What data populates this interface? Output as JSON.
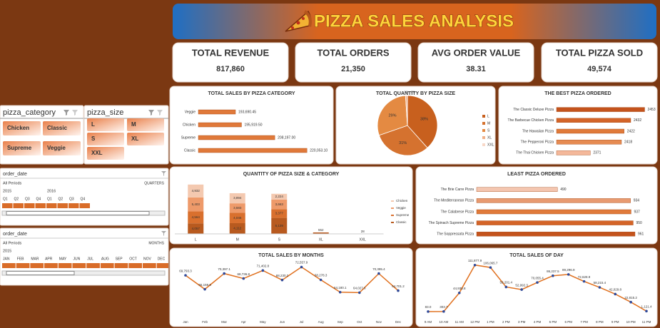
{
  "header": {
    "title": "PIZZA SALES ANALYSIS"
  },
  "kpis": [
    {
      "title": "TOTAL REVENUE",
      "value": "817,860"
    },
    {
      "title": "TOTAL ORDERS",
      "value": "21,350"
    },
    {
      "title": "AVG ORDER VALUE",
      "value": "38.31"
    },
    {
      "title": "TOTAL PIZZA SOLD",
      "value": "49,574"
    }
  ],
  "slicers": [
    {
      "title": "pizza_category",
      "items": [
        "Chicken",
        "Classic",
        "Supreme",
        "Veggie"
      ]
    },
    {
      "title": "pizza_size",
      "items": [
        "L",
        "M",
        "S",
        "XL",
        "XXL"
      ]
    }
  ],
  "timelines": [
    {
      "title": "order_date",
      "filter": "All Periods",
      "level": "QUARTERS",
      "years": [
        "2015",
        "2016"
      ],
      "periods": [
        "Q1",
        "Q2",
        "Q3",
        "Q4",
        "Q1",
        "Q2",
        "Q3",
        "Q4"
      ]
    },
    {
      "title": "order_date",
      "filter": "All Periods",
      "level": "MONTHS",
      "years": [
        "2015"
      ],
      "periods": [
        "JAN",
        "FEB",
        "MAR",
        "APR",
        "MAY",
        "JUN",
        "JUL",
        "AUG",
        "SEP",
        "OCT",
        "NOV",
        "DEC"
      ]
    }
  ],
  "chart_data": [
    {
      "type": "bar",
      "orientation": "horizontal",
      "title": "TOTAL SALES BY PIZZA CATEGORY",
      "categories": [
        "Veggie",
        "Chicken",
        "Supreme",
        "Classic"
      ],
      "values": [
        193690.45,
        195919.5,
        208197,
        220053.1
      ],
      "value_labels": [
        "193,690.45",
        "195,919.50",
        "208,197.00",
        "220,053.10"
      ],
      "xlim": [
        180000,
        225000
      ],
      "color": "#e0793a"
    },
    {
      "type": "pie",
      "title": "TOTAL QUANTITY BY PIZZA SIZE",
      "categories": [
        "L",
        "M",
        "S",
        "XL",
        "XXL"
      ],
      "values": [
        38,
        31,
        29,
        1,
        0
      ],
      "value_labels": [
        "38%",
        "31%",
        "29%",
        "1%",
        "0%"
      ],
      "colors": [
        "#c8601e",
        "#d5722f",
        "#e48a42",
        "#f0b088",
        "#f8d8c8"
      ]
    },
    {
      "type": "bar",
      "orientation": "horizontal",
      "title": "THE BEST PIZZA ORDERED",
      "categories": [
        "The Classic Deluxe Pizza",
        "The Barbecue Chicken Pizza",
        "The Hawaiian Pizza",
        "The Pepperoni Pizza",
        "The Thai Chicken Pizza"
      ],
      "values": [
        2453,
        2432,
        2422,
        2418,
        2371
      ],
      "xlim": [
        2320,
        2460
      ],
      "colors": [
        "#c4531c",
        "#d46428",
        "#e07a3a",
        "#e68b52",
        "#f4b89a"
      ]
    },
    {
      "type": "stacked_bar",
      "title": "QUANTITY OF PIZZA SIZE & CATEGORY",
      "categories": [
        "L",
        "M",
        "S",
        "XL",
        "XXL"
      ],
      "series": [
        {
          "name": "Chicken",
          "color": "#f4c9b0",
          "values": [
            4932,
            3894,
            2224,
            0,
            0
          ],
          "value_labels": [
            "4,932",
            "3,894",
            "2,224",
            null,
            null
          ]
        },
        {
          "name": "Veggie",
          "color": "#ee9a6a",
          "values": [
            5403,
            3583,
            3663,
            0,
            0
          ],
          "value_labels": [
            "5,403",
            "3,583",
            "3,663",
            null,
            null
          ]
        },
        {
          "name": "Supreme",
          "color": "#d9702e",
          "values": [
            4564,
            4046,
            3377,
            0,
            0
          ],
          "value_labels": [
            "4,564",
            "4,046",
            "3,377",
            null,
            null
          ]
        },
        {
          "name": "Classic",
          "color": "#b85a1f",
          "values": [
            4057,
            4112,
            6139,
            552,
            28
          ],
          "value_labels": [
            "4,057",
            "4,112",
            "6,139",
            "552",
            "28"
          ]
        }
      ],
      "ylim": [
        0,
        20000
      ]
    },
    {
      "type": "bar",
      "orientation": "horizontal",
      "title": "LEAST PIZZA ORDERED",
      "categories": [
        "The Brie Carre Pizza",
        "The Mediterranean Pizza",
        "The Calabrese Pizza",
        "The Spinach Supreme Pizza",
        "The Soppressata Pizza"
      ],
      "values": [
        490,
        934,
        937,
        950,
        961
      ],
      "xlim": [
        0,
        1000
      ],
      "colors": [
        "#f4c6b0",
        "#e89a70",
        "#e07a3a",
        "#d46428",
        "#c4531c"
      ]
    },
    {
      "type": "line",
      "title": "TOTAL SALES BY MONTHS",
      "categories": [
        "Jan",
        "Feb",
        "Mar",
        "Apr",
        "May",
        "Jun",
        "Jul",
        "Aug",
        "Sep",
        "Oct",
        "Nov",
        "Dec"
      ],
      "values": [
        69793.3,
        65159.6,
        70397.1,
        68736.8,
        71402.8,
        68230.2,
        72557.9,
        68278.3,
        64180.1,
        64027.6,
        70395.4,
        64701.2
      ],
      "value_labels": [
        "69,793.3",
        "65,159.6",
        "70,397.1",
        "68,736.8",
        "71,402.8",
        "68,230.2",
        "72,557.9",
        "68,278.3",
        "64,180.1",
        "64,027.6",
        "70,395.4",
        "64,701.2"
      ],
      "ylim": [
        57000,
        76000
      ],
      "color": "#e0701e",
      "marker_color": "#2f4a9a"
    },
    {
      "type": "line",
      "title": "TOTAL SALES OF DAY",
      "categories": [
        "9 AM",
        "10 AM",
        "11 AM",
        "12 PM",
        "1 PM",
        "2 PM",
        "3 PM",
        "4 PM",
        "5 PM",
        "6 PM",
        "7 PM",
        "8 PM",
        "9 PM",
        "10 PM",
        "11 PM"
      ],
      "values": [
        83,
        303.7,
        44935.8,
        111877.9,
        106065.7,
        59201.4,
        52992.3,
        70055.4,
        86237.5,
        89296.9,
        72628.9,
        58215.4,
        42029.8,
        22815.2,
        1121.4
      ],
      "value_labels": [
        "83.0",
        "303.7",
        "44,935.8",
        "111,877.9",
        "106,065.7",
        "59,201.4",
        "52,992.3",
        "70,055.4",
        "86,237.5",
        "89,296.9",
        "72,628.9",
        "58,215.4",
        "42,029.8",
        "22,815.2",
        "1,121.4"
      ],
      "ylim": [
        0,
        120000
      ],
      "color": "#e0701e",
      "marker_color": "#2f4a9a"
    }
  ]
}
